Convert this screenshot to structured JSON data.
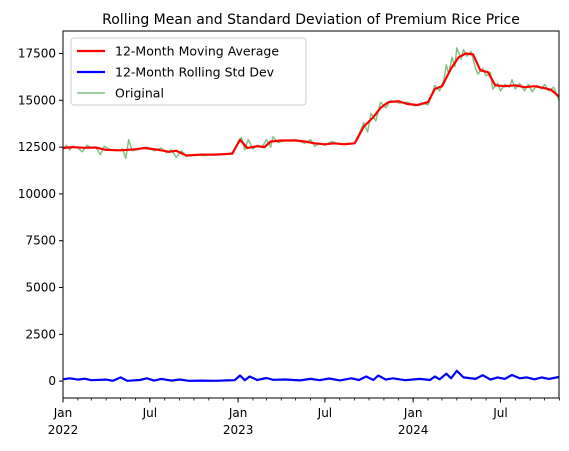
{
  "chart_data": {
    "type": "line",
    "title": "Rolling Mean and Standard Deviation of Premium Rice Price",
    "xlabel": "",
    "ylabel": "",
    "x_range": [
      "2022-01-01",
      "2024-10-31"
    ],
    "ylim": [
      -900,
      18700
    ],
    "y_ticks": [
      0,
      2500,
      5000,
      7500,
      10000,
      12500,
      15000,
      17500
    ],
    "x_ticks": [
      {
        "date": "2022-01-01",
        "label": "Jan",
        "sublabel": "2022"
      },
      {
        "date": "2022-07-01",
        "label": "Jul",
        "sublabel": ""
      },
      {
        "date": "2023-01-01",
        "label": "Jan",
        "sublabel": "2023"
      },
      {
        "date": "2023-07-01",
        "label": "Jul",
        "sublabel": ""
      },
      {
        "date": "2024-01-01",
        "label": "Jan",
        "sublabel": "2024"
      },
      {
        "date": "2024-07-01",
        "label": "Jul",
        "sublabel": ""
      }
    ],
    "grid": false,
    "legend_position": "top-left",
    "series": [
      {
        "name": "12-Month Moving Average",
        "color": "#ff0000",
        "points": [
          [
            "2022-01-01",
            12450
          ],
          [
            "2022-01-20",
            12500
          ],
          [
            "2022-02-15",
            12460
          ],
          [
            "2022-03-10",
            12480
          ],
          [
            "2022-04-01",
            12350
          ],
          [
            "2022-05-01",
            12330
          ],
          [
            "2022-06-01",
            12380
          ],
          [
            "2022-06-20",
            12450
          ],
          [
            "2022-07-20",
            12350
          ],
          [
            "2022-08-10",
            12250
          ],
          [
            "2022-08-25",
            12300
          ],
          [
            "2022-09-15",
            12050
          ],
          [
            "2022-10-15",
            12100
          ],
          [
            "2022-11-15",
            12100
          ],
          [
            "2022-12-20",
            12150
          ],
          [
            "2023-01-05",
            12900
          ],
          [
            "2023-01-20",
            12450
          ],
          [
            "2023-02-10",
            12550
          ],
          [
            "2023-02-25",
            12500
          ],
          [
            "2023-03-10",
            12800
          ],
          [
            "2023-04-01",
            12850
          ],
          [
            "2023-05-01",
            12850
          ],
          [
            "2023-05-20",
            12800
          ],
          [
            "2023-06-10",
            12700
          ],
          [
            "2023-07-01",
            12650
          ],
          [
            "2023-07-20",
            12700
          ],
          [
            "2023-08-10",
            12650
          ],
          [
            "2023-09-01",
            12700
          ],
          [
            "2023-09-20",
            13600
          ],
          [
            "2023-10-10",
            14100
          ],
          [
            "2023-10-25",
            14600
          ],
          [
            "2023-11-10",
            14900
          ],
          [
            "2023-12-01",
            14950
          ],
          [
            "2023-12-20",
            14800
          ],
          [
            "2024-01-10",
            14750
          ],
          [
            "2024-02-01",
            14900
          ],
          [
            "2024-02-15",
            15600
          ],
          [
            "2024-03-01",
            15750
          ],
          [
            "2024-03-20",
            16700
          ],
          [
            "2024-04-05",
            17300
          ],
          [
            "2024-04-20",
            17500
          ],
          [
            "2024-05-05",
            17450
          ],
          [
            "2024-05-20",
            16600
          ],
          [
            "2024-06-05",
            16500
          ],
          [
            "2024-06-20",
            15800
          ],
          [
            "2024-07-10",
            15750
          ],
          [
            "2024-08-01",
            15800
          ],
          [
            "2024-08-20",
            15700
          ],
          [
            "2024-09-10",
            15750
          ],
          [
            "2024-09-30",
            15650
          ],
          [
            "2024-10-15",
            15550
          ],
          [
            "2024-10-31",
            15200
          ]
        ]
      },
      {
        "name": "12-Month Rolling Std Dev",
        "color": "#0000ff",
        "points": [
          [
            "2022-01-01",
            100
          ],
          [
            "2022-01-15",
            150
          ],
          [
            "2022-02-01",
            80
          ],
          [
            "2022-02-15",
            130
          ],
          [
            "2022-03-01",
            50
          ],
          [
            "2022-04-01",
            80
          ],
          [
            "2022-04-15",
            20
          ],
          [
            "2022-05-01",
            200
          ],
          [
            "2022-05-15",
            20
          ],
          [
            "2022-06-10",
            60
          ],
          [
            "2022-06-25",
            150
          ],
          [
            "2022-07-10",
            30
          ],
          [
            "2022-07-25",
            120
          ],
          [
            "2022-08-15",
            30
          ],
          [
            "2022-09-01",
            90
          ],
          [
            "2022-09-20",
            20
          ],
          [
            "2022-10-15",
            30
          ],
          [
            "2022-11-15",
            20
          ],
          [
            "2022-12-10",
            40
          ],
          [
            "2022-12-25",
            50
          ],
          [
            "2023-01-05",
            300
          ],
          [
            "2023-01-15",
            50
          ],
          [
            "2023-01-25",
            250
          ],
          [
            "2023-02-10",
            60
          ],
          [
            "2023-03-01",
            170
          ],
          [
            "2023-03-15",
            70
          ],
          [
            "2023-04-10",
            90
          ],
          [
            "2023-05-10",
            40
          ],
          [
            "2023-06-01",
            120
          ],
          [
            "2023-06-20",
            50
          ],
          [
            "2023-07-10",
            140
          ],
          [
            "2023-08-01",
            40
          ],
          [
            "2023-08-25",
            150
          ],
          [
            "2023-09-10",
            60
          ],
          [
            "2023-09-25",
            250
          ],
          [
            "2023-10-10",
            60
          ],
          [
            "2023-10-20",
            300
          ],
          [
            "2023-11-05",
            80
          ],
          [
            "2023-11-20",
            150
          ],
          [
            "2023-12-15",
            50
          ],
          [
            "2024-01-15",
            120
          ],
          [
            "2024-02-05",
            60
          ],
          [
            "2024-02-15",
            250
          ],
          [
            "2024-02-25",
            100
          ],
          [
            "2024-03-10",
            400
          ],
          [
            "2024-03-20",
            150
          ],
          [
            "2024-04-01",
            550
          ],
          [
            "2024-04-15",
            200
          ],
          [
            "2024-05-10",
            120
          ],
          [
            "2024-05-25",
            320
          ],
          [
            "2024-06-10",
            80
          ],
          [
            "2024-06-25",
            200
          ],
          [
            "2024-07-10",
            120
          ],
          [
            "2024-07-25",
            330
          ],
          [
            "2024-08-10",
            150
          ],
          [
            "2024-08-25",
            200
          ],
          [
            "2024-09-10",
            100
          ],
          [
            "2024-09-25",
            200
          ],
          [
            "2024-10-10",
            120
          ],
          [
            "2024-10-31",
            220
          ]
        ]
      },
      {
        "name": "Original",
        "color": "#4da84d",
        "points": [
          [
            "2022-01-01",
            12400
          ],
          [
            "2022-01-08",
            12600
          ],
          [
            "2022-01-15",
            12350
          ],
          [
            "2022-01-22",
            12550
          ],
          [
            "2022-02-01",
            12450
          ],
          [
            "2022-02-10",
            12250
          ],
          [
            "2022-02-20",
            12600
          ],
          [
            "2022-03-01",
            12450
          ],
          [
            "2022-03-10",
            12500
          ],
          [
            "2022-03-20",
            12100
          ],
          [
            "2022-03-28",
            12550
          ],
          [
            "2022-04-10",
            12350
          ],
          [
            "2022-04-25",
            12300
          ],
          [
            "2022-05-05",
            12400
          ],
          [
            "2022-05-12",
            11900
          ],
          [
            "2022-05-18",
            12900
          ],
          [
            "2022-05-25",
            12300
          ],
          [
            "2022-06-10",
            12400
          ],
          [
            "2022-06-25",
            12500
          ],
          [
            "2022-07-10",
            12300
          ],
          [
            "2022-07-25",
            12450
          ],
          [
            "2022-08-05",
            12200
          ],
          [
            "2022-08-15",
            12350
          ],
          [
            "2022-08-25",
            11950
          ],
          [
            "2022-09-05",
            12300
          ],
          [
            "2022-09-15",
            12000
          ],
          [
            "2022-10-01",
            12100
          ],
          [
            "2022-10-20",
            12050
          ],
          [
            "2022-11-10",
            12100
          ],
          [
            "2022-12-01",
            12100
          ],
          [
            "2022-12-20",
            12200
          ],
          [
            "2022-12-28",
            12500
          ],
          [
            "2023-01-03",
            12850
          ],
          [
            "2023-01-08",
            13000
          ],
          [
            "2023-01-15",
            12350
          ],
          [
            "2023-01-22",
            12900
          ],
          [
            "2023-02-01",
            12400
          ],
          [
            "2023-02-10",
            12600
          ],
          [
            "2023-02-20",
            12500
          ],
          [
            "2023-03-01",
            12900
          ],
          [
            "2023-03-10",
            12500
          ],
          [
            "2023-03-15",
            13050
          ],
          [
            "2023-03-25",
            12750
          ],
          [
            "2023-04-10",
            12850
          ],
          [
            "2023-05-01",
            12900
          ],
          [
            "2023-05-20",
            12700
          ],
          [
            "2023-06-01",
            12900
          ],
          [
            "2023-06-10",
            12550
          ],
          [
            "2023-06-20",
            12700
          ],
          [
            "2023-07-01",
            12600
          ],
          [
            "2023-07-15",
            12800
          ],
          [
            "2023-08-01",
            12650
          ],
          [
            "2023-08-20",
            12700
          ],
          [
            "2023-09-01",
            12700
          ],
          [
            "2023-09-10",
            13200
          ],
          [
            "2023-09-20",
            13800
          ],
          [
            "2023-09-28",
            13300
          ],
          [
            "2023-10-05",
            14300
          ],
          [
            "2023-10-15",
            13900
          ],
          [
            "2023-10-25",
            14900
          ],
          [
            "2023-11-05",
            14600
          ],
          [
            "2023-11-15",
            15000
          ],
          [
            "2023-12-01",
            14850
          ],
          [
            "2023-12-20",
            14900
          ],
          [
            "2024-01-05",
            14700
          ],
          [
            "2024-01-20",
            14850
          ],
          [
            "2024-02-01",
            14750
          ],
          [
            "2024-02-10",
            15400
          ],
          [
            "2024-02-15",
            15800
          ],
          [
            "2024-02-25",
            15500
          ],
          [
            "2024-03-05",
            16100
          ],
          [
            "2024-03-10",
            16900
          ],
          [
            "2024-03-15",
            16400
          ],
          [
            "2024-03-22",
            17300
          ],
          [
            "2024-03-28",
            16800
          ],
          [
            "2024-04-01",
            17800
          ],
          [
            "2024-04-10",
            17200
          ],
          [
            "2024-04-15",
            17700
          ],
          [
            "2024-04-22",
            17350
          ],
          [
            "2024-05-01",
            17600
          ],
          [
            "2024-05-10",
            16700
          ],
          [
            "2024-05-15",
            16400
          ],
          [
            "2024-05-25",
            16700
          ],
          [
            "2024-06-01",
            16300
          ],
          [
            "2024-06-10",
            16500
          ],
          [
            "2024-06-15",
            15600
          ],
          [
            "2024-06-25",
            15900
          ],
          [
            "2024-07-01",
            15500
          ],
          [
            "2024-07-10",
            15850
          ],
          [
            "2024-07-20",
            15700
          ],
          [
            "2024-07-25",
            16100
          ],
          [
            "2024-08-01",
            15600
          ],
          [
            "2024-08-10",
            15900
          ],
          [
            "2024-08-20",
            15500
          ],
          [
            "2024-08-28",
            15850
          ],
          [
            "2024-09-05",
            15450
          ],
          [
            "2024-09-15",
            15800
          ],
          [
            "2024-09-25",
            15600
          ],
          [
            "2024-10-01",
            15850
          ],
          [
            "2024-10-10",
            15500
          ],
          [
            "2024-10-20",
            15700
          ],
          [
            "2024-10-31",
            15000
          ]
        ]
      }
    ]
  }
}
